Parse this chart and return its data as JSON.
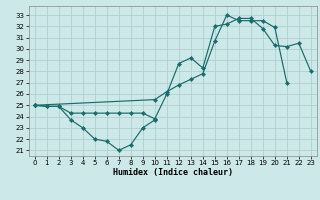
{
  "background_color": "#cce8e8",
  "grid_color": "#aacccc",
  "line_color": "#1a6b6b",
  "xlabel": "Humidex (Indice chaleur)",
  "xlim": [
    -0.5,
    23.5
  ],
  "ylim": [
    20.5,
    33.8
  ],
  "yticks": [
    21,
    22,
    23,
    24,
    25,
    26,
    27,
    28,
    29,
    30,
    31,
    32,
    33
  ],
  "xticks": [
    0,
    1,
    2,
    3,
    4,
    5,
    6,
    7,
    8,
    9,
    10,
    11,
    12,
    13,
    14,
    15,
    16,
    17,
    18,
    19,
    20,
    21,
    22,
    23
  ],
  "curve1": {
    "x": [
      0,
      1,
      2,
      3,
      4,
      5,
      6,
      7,
      8,
      9,
      10
    ],
    "y": [
      25.0,
      24.9,
      24.9,
      23.7,
      23.0,
      22.0,
      21.8,
      21.0,
      21.5,
      23.0,
      23.7
    ]
  },
  "curve2": {
    "x": [
      0,
      1,
      2,
      3,
      4,
      5,
      6,
      7,
      8,
      9,
      10,
      11,
      12,
      13,
      14,
      15,
      16,
      17,
      18,
      19,
      20,
      21,
      22,
      23
    ],
    "y": [
      25.0,
      24.9,
      24.9,
      24.3,
      24.3,
      24.3,
      24.3,
      24.3,
      24.3,
      24.3,
      23.8,
      26.0,
      28.7,
      29.2,
      28.3,
      32.0,
      32.2,
      32.7,
      32.7,
      31.8,
      30.3,
      30.2,
      30.5,
      28.0
    ]
  },
  "curve3": {
    "x": [
      0,
      10,
      11,
      12,
      13,
      14,
      15,
      16,
      17,
      18,
      19,
      20,
      21
    ],
    "y": [
      25.0,
      25.5,
      26.2,
      26.8,
      27.3,
      27.8,
      30.7,
      33.0,
      32.5,
      32.5,
      32.5,
      31.9,
      27.0
    ]
  }
}
